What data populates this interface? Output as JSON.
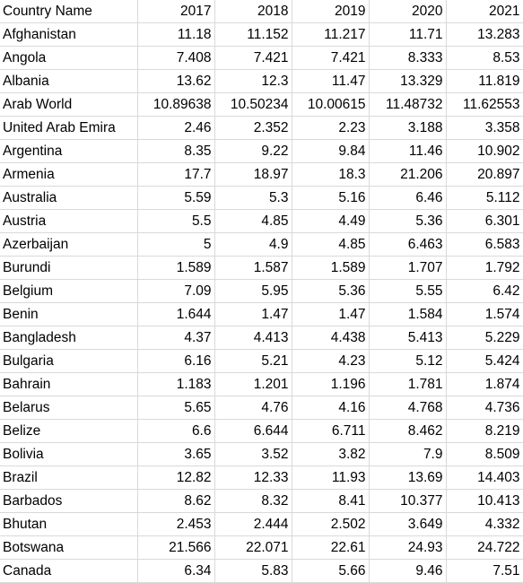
{
  "header": [
    "Country Name",
    "2017",
    "2018",
    "2019",
    "2020",
    "2021"
  ],
  "rows": [
    [
      "Afghanistan",
      "11.18",
      "11.152",
      "11.217",
      "11.71",
      "13.283"
    ],
    [
      "Angola",
      "7.408",
      "7.421",
      "7.421",
      "8.333",
      "8.53"
    ],
    [
      "Albania",
      "13.62",
      "12.3",
      "11.47",
      "13.329",
      "11.819"
    ],
    [
      "Arab World",
      "10.89638",
      "10.50234",
      "10.00615",
      "11.48732",
      "11.62553"
    ],
    [
      "United Arab Emira",
      "2.46",
      "2.352",
      "2.23",
      "3.188",
      "3.358"
    ],
    [
      "Argentina",
      "8.35",
      "9.22",
      "9.84",
      "11.46",
      "10.902"
    ],
    [
      "Armenia",
      "17.7",
      "18.97",
      "18.3",
      "21.206",
      "20.897"
    ],
    [
      "Australia",
      "5.59",
      "5.3",
      "5.16",
      "6.46",
      "5.112"
    ],
    [
      "Austria",
      "5.5",
      "4.85",
      "4.49",
      "5.36",
      "6.301"
    ],
    [
      "Azerbaijan",
      "5",
      "4.9",
      "4.85",
      "6.463",
      "6.583"
    ],
    [
      "Burundi",
      "1.589",
      "1.587",
      "1.589",
      "1.707",
      "1.792"
    ],
    [
      "Belgium",
      "7.09",
      "5.95",
      "5.36",
      "5.55",
      "6.42"
    ],
    [
      "Benin",
      "1.644",
      "1.47",
      "1.47",
      "1.584",
      "1.574"
    ],
    [
      "Bangladesh",
      "4.37",
      "4.413",
      "4.438",
      "5.413",
      "5.229"
    ],
    [
      "Bulgaria",
      "6.16",
      "5.21",
      "4.23",
      "5.12",
      "5.424"
    ],
    [
      "Bahrain",
      "1.183",
      "1.201",
      "1.196",
      "1.781",
      "1.874"
    ],
    [
      "Belarus",
      "5.65",
      "4.76",
      "4.16",
      "4.768",
      "4.736"
    ],
    [
      "Belize",
      "6.6",
      "6.644",
      "6.711",
      "8.462",
      "8.219"
    ],
    [
      "Bolivia",
      "3.65",
      "3.52",
      "3.82",
      "7.9",
      "8.509"
    ],
    [
      "Brazil",
      "12.82",
      "12.33",
      "11.93",
      "13.69",
      "14.403"
    ],
    [
      "Barbados",
      "8.62",
      "8.32",
      "8.41",
      "10.377",
      "10.413"
    ],
    [
      "Bhutan",
      "2.453",
      "2.444",
      "2.502",
      "3.649",
      "4.332"
    ],
    [
      "Botswana",
      "21.566",
      "22.071",
      "22.61",
      "24.93",
      "24.722"
    ],
    [
      "Canada",
      "6.34",
      "5.83",
      "5.66",
      "9.46",
      "7.51"
    ]
  ]
}
